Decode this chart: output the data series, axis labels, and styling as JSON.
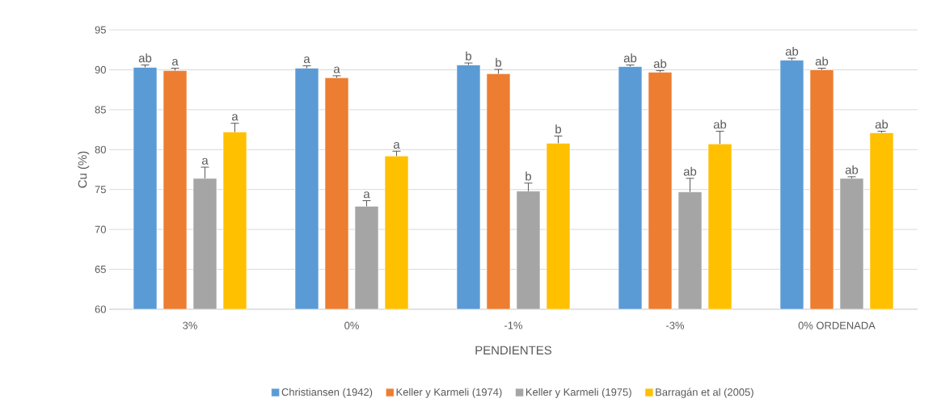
{
  "chart_data": {
    "type": "bar",
    "xlabel": "PENDIENTES",
    "ylabel": "Cu (%)",
    "categories": [
      "3%",
      "0%",
      "-1%",
      "-3%",
      "0% ORDENADA"
    ],
    "ylim": [
      60,
      95
    ],
    "yticks": [
      60,
      65,
      70,
      75,
      80,
      85,
      90,
      95
    ],
    "grid": "y",
    "legend": "bottom",
    "series": [
      {
        "name": "Christiansen (1942)",
        "color": "#5b9bd5",
        "values": [
          90.3,
          90.2,
          90.6,
          90.4,
          91.2
        ],
        "errors": [
          0.3,
          0.3,
          0.25,
          0.2,
          0.25
        ],
        "value_labels": [
          "ab",
          "a",
          "b",
          "ab",
          "ab"
        ]
      },
      {
        "name": "Keller y Karmeli (1974)",
        "color": "#ed7d31",
        "values": [
          89.9,
          89.0,
          89.5,
          89.7,
          90.0
        ],
        "errors": [
          0.3,
          0.25,
          0.55,
          0.2,
          0.2
        ],
        "value_labels": [
          "a",
          "a",
          "b",
          "ab",
          "ab"
        ]
      },
      {
        "name": "Keller y Karmeli (1975)",
        "color": "#a5a5a5",
        "values": [
          76.4,
          72.9,
          74.8,
          74.7,
          76.4
        ],
        "errors": [
          1.4,
          0.7,
          1.0,
          1.7,
          0.2
        ],
        "value_labels": [
          "a",
          "a",
          "b",
          "ab",
          "ab"
        ]
      },
      {
        "name": "Barragán  et al (2005)",
        "color": "#ffc000",
        "values": [
          82.2,
          79.2,
          80.8,
          80.7,
          82.1
        ],
        "errors": [
          1.1,
          0.6,
          0.9,
          1.6,
          0.2
        ],
        "value_labels": [
          "a",
          "a",
          "b",
          "ab",
          "ab"
        ]
      }
    ]
  }
}
